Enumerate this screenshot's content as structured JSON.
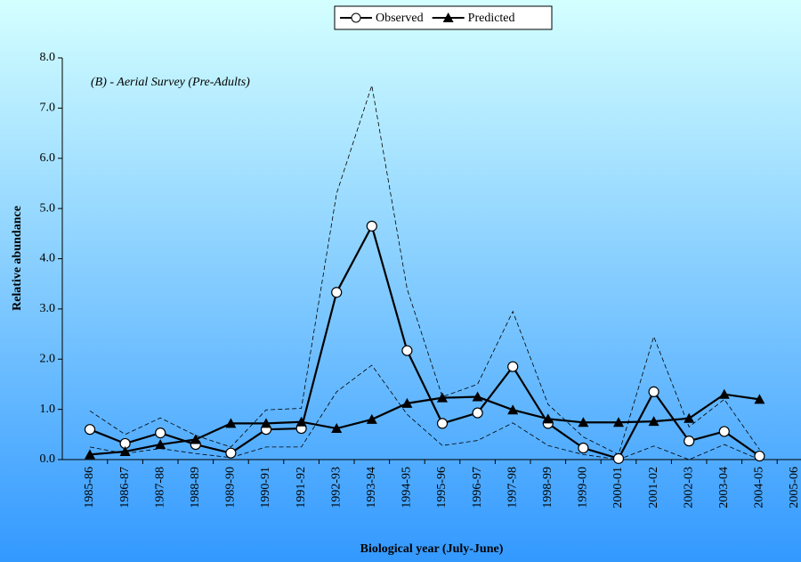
{
  "chart_data": {
    "type": "line",
    "annotation": "(B) - Aerial Survey (Pre-Adults)",
    "xlabel": "Biological year (July-June)",
    "ylabel": "Relative abundance",
    "categories": [
      "1985-86",
      "1986-87",
      "1987-88",
      "1988-89",
      "1989-90",
      "1990-91",
      "1991-92",
      "1992-93",
      "1993-94",
      "1994-95",
      "1995-96",
      "1996-97",
      "1997-98",
      "1998-99",
      "1999-00",
      "2000-01",
      "2001-02",
      "2002-03",
      "2003-04",
      "2004-05",
      "2005-06"
    ],
    "series": [
      {
        "color": "#000000",
        "style": "dashed",
        "values": [
          0.97,
          0.5,
          0.83,
          0.48,
          0.25,
          0.99,
          1.02,
          5.3,
          7.45,
          3.4,
          1.25,
          1.5,
          2.95,
          1.1,
          0.45,
          0.1,
          2.45,
          0.65,
          1.2,
          0.2,
          null
        ]
      },
      {
        "color": "#000000",
        "style": "dashed",
        "values": [
          0.25,
          0.12,
          0.22,
          0.12,
          0.04,
          0.25,
          0.25,
          1.35,
          1.88,
          0.9,
          0.28,
          0.38,
          0.73,
          0.28,
          0.1,
          0.0,
          0.27,
          0.0,
          0.3,
          0.0,
          null
        ]
      },
      {
        "name": "Observed",
        "color": "#000000",
        "style": "solid",
        "marker": "circle",
        "values": [
          0.6,
          0.32,
          0.53,
          0.3,
          0.13,
          0.6,
          0.62,
          3.33,
          4.65,
          2.17,
          0.72,
          0.93,
          1.85,
          0.72,
          0.23,
          0.02,
          1.35,
          0.37,
          0.56,
          0.07,
          null
        ]
      },
      {
        "name": "Predicted",
        "color": "#000000",
        "style": "solid",
        "marker": "triangle",
        "values": [
          0.1,
          0.16,
          0.3,
          0.4,
          0.72,
          0.72,
          0.75,
          0.62,
          0.8,
          1.12,
          1.23,
          1.25,
          0.99,
          0.81,
          0.74,
          0.74,
          0.76,
          0.82,
          1.3,
          1.2,
          null
        ]
      }
    ],
    "ylim": [
      0,
      8
    ],
    "yticks": [
      {
        "value": 0,
        "label": "0.0"
      },
      {
        "value": 1,
        "label": "1.0"
      },
      {
        "value": 2,
        "label": "2.0"
      },
      {
        "value": 3,
        "label": "3.0"
      },
      {
        "value": 4,
        "label": "4.0"
      },
      {
        "value": 5,
        "label": "5.0"
      },
      {
        "value": 6,
        "label": "6.0"
      },
      {
        "value": 7,
        "label": "7.0"
      },
      {
        "value": 8,
        "label": "8.0"
      }
    ],
    "grid": false,
    "legend": "top"
  }
}
